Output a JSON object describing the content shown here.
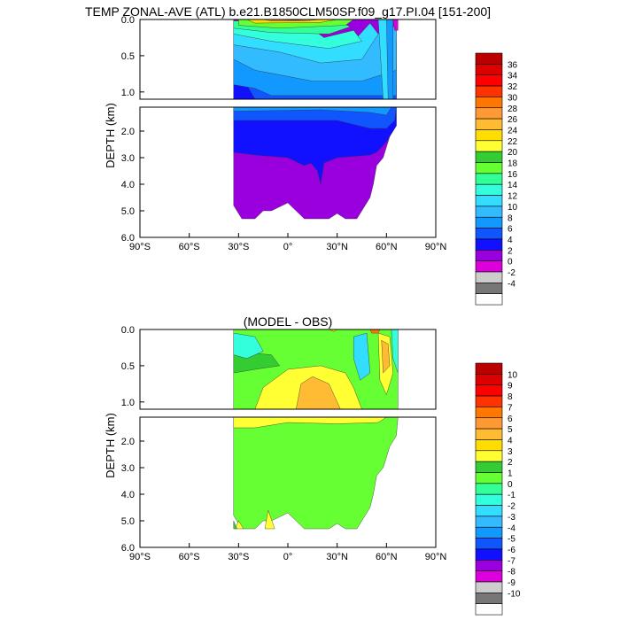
{
  "chart_data": [
    {
      "type": "heatmap",
      "title": "TEMP ZONAL-AVE (ATL) b.e21.B1850CLM50SP.f09_g17.PI.04 [151-200]",
      "ylabel": "DEPTH (km)",
      "xlabel": "",
      "x_ticks": [
        "90°S",
        "60°S",
        "30°S",
        "0°",
        "30°N",
        "60°N",
        "90°N"
      ],
      "upper_y_ticks": [
        "0.0",
        "0.5",
        "1.0"
      ],
      "lower_y_ticks": [
        "2.0",
        "3.0",
        "4.0",
        "5.0",
        "6.0"
      ],
      "xlim": [
        -90,
        90
      ],
      "ylim_upper_km": [
        0,
        1.1
      ],
      "ylim_lower_km": [
        1.1,
        6.0
      ],
      "colorbar": {
        "labels": [
          "36",
          "34",
          "32",
          "30",
          "28",
          "26",
          "24",
          "22",
          "20",
          "18",
          "16",
          "14",
          "12",
          "10",
          "8",
          "6",
          "4",
          "2",
          "0",
          "-2",
          "-4"
        ],
        "colors": [
          "#bb0000",
          "#dd0000",
          "#ff0000",
          "#ff3300",
          "#ff7700",
          "#ff9933",
          "#ffbb33",
          "#ffdd00",
          "#ffff33",
          "#33cc33",
          "#66ff33",
          "#33ff99",
          "#33ffdd",
          "#33ddff",
          "#33bbff",
          "#1199ff",
          "#1155ff",
          "#1111ff",
          "#9900dd",
          "#dd00dd",
          "#cccccc",
          "#777777",
          "#ffffff"
        ]
      }
    },
    {
      "type": "heatmap",
      "title": "(MODEL - OBS)",
      "ylabel": "DEPTH (km)",
      "xlabel": "",
      "x_ticks": [
        "90°S",
        "60°S",
        "30°S",
        "0°",
        "30°N",
        "60°N",
        "90°N"
      ],
      "upper_y_ticks": [
        "0.0",
        "0.5",
        "1.0"
      ],
      "lower_y_ticks": [
        "2.0",
        "3.0",
        "4.0",
        "5.0",
        "6.0"
      ],
      "xlim": [
        -90,
        90
      ],
      "ylim_upper_km": [
        0,
        1.1
      ],
      "ylim_lower_km": [
        1.1,
        6.0
      ],
      "colorbar": {
        "labels": [
          "10",
          "9",
          "8",
          "7",
          "6",
          "5",
          "4",
          "3",
          "2",
          "1",
          "0",
          "-1",
          "-2",
          "-3",
          "-4",
          "-5",
          "-6",
          "-7",
          "-8",
          "-9",
          "-10"
        ],
        "colors": [
          "#bb0000",
          "#dd0000",
          "#ff0000",
          "#ff3300",
          "#ff7700",
          "#ff9933",
          "#ffbb33",
          "#ffdd00",
          "#ffff33",
          "#33cc33",
          "#66ff33",
          "#33ff99",
          "#33ffdd",
          "#33ddff",
          "#33bbff",
          "#1199ff",
          "#1155ff",
          "#1111ff",
          "#9900dd",
          "#dd00dd",
          "#cccccc",
          "#777777",
          "#ffffff"
        ]
      }
    }
  ]
}
